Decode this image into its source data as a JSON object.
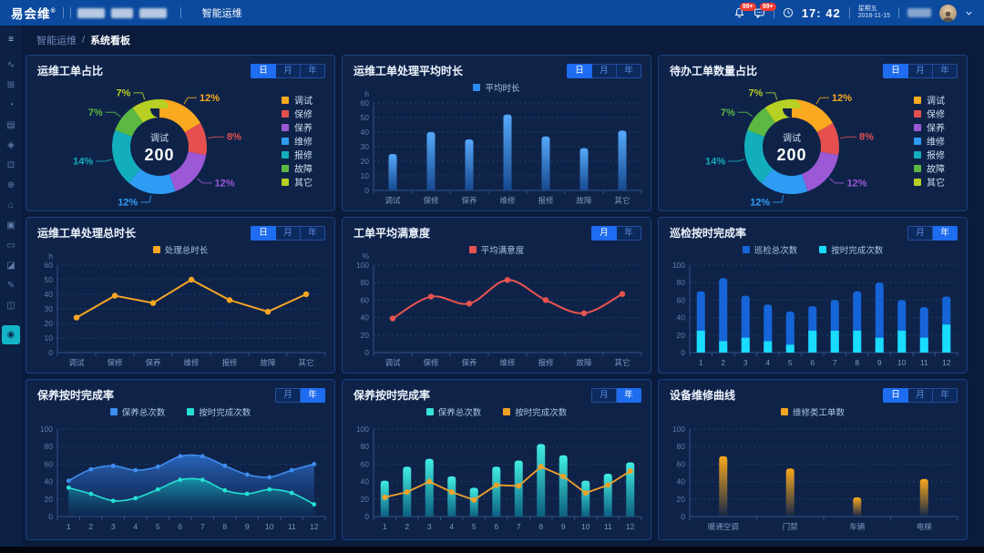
{
  "topbar": {
    "logo_text": "易会维",
    "logo_sup": "®",
    "nav_item": "智能运维",
    "bell_badge": "99+",
    "message_badge": "99+",
    "time": "17: 42",
    "weekday": "星期五",
    "date": "2018-11-15"
  },
  "breadcrumb": {
    "parent": "智能运维",
    "separator": "/",
    "current": "系统看板"
  },
  "sidebar": {
    "items": [
      {
        "name": "menu-collapse-icon",
        "glyph": "≡"
      },
      {
        "name": "pulse-monitor-icon",
        "glyph": "∿"
      },
      {
        "name": "modules-icon",
        "glyph": "⊞"
      },
      {
        "name": "alarm-icon",
        "glyph": "◔"
      },
      {
        "name": "table-icon",
        "glyph": "▤"
      },
      {
        "name": "shield-icon",
        "glyph": "◈"
      },
      {
        "name": "apps-icon",
        "glyph": "⊡"
      },
      {
        "name": "organization-icon",
        "glyph": "⊕"
      },
      {
        "name": "home-icon",
        "glyph": "⌂"
      },
      {
        "name": "briefcase-icon",
        "glyph": "▣"
      },
      {
        "name": "display-icon",
        "glyph": "▭"
      },
      {
        "name": "media-icon",
        "glyph": "◪"
      },
      {
        "name": "edit-icon",
        "glyph": "✎"
      },
      {
        "name": "chart-icon",
        "glyph": "◫"
      },
      {
        "name": "settings-icon",
        "glyph": "◉",
        "active": true
      }
    ]
  },
  "panels": [
    {
      "title": "运维工单占比",
      "toggles": [
        {
          "label": "日",
          "active": true
        },
        {
          "label": "月"
        },
        {
          "label": "年"
        }
      ]
    },
    {
      "title": "运维工单处理平均时长",
      "toggles": [
        {
          "label": "日",
          "active": true
        },
        {
          "label": "月"
        },
        {
          "label": "年"
        }
      ]
    },
    {
      "title": "待办工单数量占比",
      "toggles": [
        {
          "label": "日",
          "active": true
        },
        {
          "label": "月"
        },
        {
          "label": "年"
        }
      ]
    },
    {
      "title": "运维工单处理总时长",
      "toggles": [
        {
          "label": "日",
          "active": true
        },
        {
          "label": "月"
        },
        {
          "label": "年"
        }
      ]
    },
    {
      "title": "工单平均满意度",
      "toggles": [
        {
          "label": "月",
          "active": true
        },
        {
          "label": "年"
        }
      ]
    },
    {
      "title": "巡检按时完成率",
      "toggles": [
        {
          "label": "月"
        },
        {
          "label": "年",
          "active": true
        }
      ]
    },
    {
      "title": "保养按时完成率",
      "toggles": [
        {
          "label": "月"
        },
        {
          "label": "年",
          "active": true
        }
      ]
    },
    {
      "title": "保养按时完成率",
      "toggles": [
        {
          "label": "月"
        },
        {
          "label": "年",
          "active": true
        }
      ]
    },
    {
      "title": "设备维修曲线",
      "toggles": [
        {
          "label": "日",
          "active": true
        },
        {
          "label": "月"
        },
        {
          "label": "年"
        }
      ]
    }
  ],
  "chart_data": [
    {
      "type": "donut",
      "title": "运维工单占比",
      "center_label": "调试",
      "center_value": "200",
      "slices": [
        {
          "label": "调试",
          "pct": 12,
          "color": "#f9a91f"
        },
        {
          "label": "保修",
          "pct": 8,
          "color": "#e5504f"
        },
        {
          "label": "保养",
          "pct": 12,
          "color": "#9b59d6"
        },
        {
          "label": "维修",
          "pct": 12,
          "color": "#2e9cf4"
        },
        {
          "label": "报修",
          "pct": 14,
          "color": "#13aebc"
        },
        {
          "label": "故障",
          "pct": 7,
          "color": "#5cb843"
        },
        {
          "label": "其它",
          "pct": 7,
          "color": "#b7d023"
        }
      ]
    },
    {
      "type": "bar",
      "title": "运维工单处理平均时长",
      "unit": "h",
      "ymax": 60,
      "ystep": 10,
      "categories": [
        "调试",
        "保修",
        "保养",
        "维修",
        "报修",
        "故障",
        "其它"
      ],
      "series": [
        {
          "name": "平均时长",
          "color": "#2d8cf0",
          "grad": [
            "#55a9fa",
            "#17498f"
          ],
          "values": [
            25,
            40,
            35,
            52,
            37,
            29,
            41
          ]
        }
      ]
    },
    {
      "type": "donut",
      "title": "待办工单数量占比",
      "center_label": "调试",
      "center_value": "200",
      "slices": [
        {
          "label": "调试",
          "pct": 12,
          "color": "#f9a91f"
        },
        {
          "label": "保修",
          "pct": 8,
          "color": "#e5504f"
        },
        {
          "label": "保养",
          "pct": 12,
          "color": "#9b59d6"
        },
        {
          "label": "维修",
          "pct": 12,
          "color": "#2e9cf4"
        },
        {
          "label": "报修",
          "pct": 14,
          "color": "#13aebc"
        },
        {
          "label": "故障",
          "pct": 7,
          "color": "#5cb843"
        },
        {
          "label": "其它",
          "pct": 7,
          "color": "#b7d023"
        }
      ]
    },
    {
      "type": "line",
      "title": "运维工单处理总时长",
      "unit": "h",
      "ymax": 60,
      "ystep": 10,
      "categories": [
        "调试",
        "保修",
        "保养",
        "维修",
        "报修",
        "故障",
        "其它"
      ],
      "series": [
        {
          "name": "处理总时长",
          "color": "#f5a623",
          "values": [
            24,
            39,
            34,
            50,
            36,
            28,
            40
          ]
        }
      ]
    },
    {
      "type": "line",
      "smooth": true,
      "title": "工单平均满意度",
      "unit": "%",
      "ymax": 100,
      "ystep": 20,
      "categories": [
        "调试",
        "保修",
        "保养",
        "维修",
        "报修",
        "故障",
        "其它"
      ],
      "series": [
        {
          "name": "平均满意度",
          "color": "#e8544f",
          "values": [
            39,
            64,
            56,
            83,
            60,
            45,
            67
          ]
        }
      ]
    },
    {
      "type": "stacked_bar",
      "title": "巡检按时完成率",
      "ymax": 100,
      "ystep": 20,
      "categories": [
        "1",
        "2",
        "3",
        "4",
        "5",
        "6",
        "7",
        "8",
        "9",
        "10",
        "11",
        "12"
      ],
      "series": [
        {
          "name": "巡检总次数",
          "color": "#1565d8",
          "values": [
            70,
            85,
            65,
            55,
            47,
            53,
            60,
            70,
            80,
            60,
            52,
            64
          ]
        },
        {
          "name": "按时完成次数",
          "color": "#19dcff",
          "values": [
            25,
            13,
            17,
            13,
            9,
            25,
            25,
            25,
            17,
            25,
            17,
            32
          ]
        }
      ]
    },
    {
      "type": "area",
      "title": "保养按时完成率",
      "ymax": 100,
      "ystep": 20,
      "categories": [
        "1",
        "2",
        "3",
        "4",
        "5",
        "6",
        "7",
        "8",
        "9",
        "10",
        "11",
        "12"
      ],
      "series": [
        {
          "name": "保养总次数",
          "color": "#3d8df0",
          "fill": [
            "rgba(45,110,200,0.9)",
            "rgba(15,45,100,0.35)"
          ],
          "values": [
            41,
            54,
            58,
            53,
            57,
            69,
            69,
            58,
            48,
            45,
            53,
            60
          ]
        },
        {
          "name": "按时完成次数",
          "color": "#25e0d2",
          "fill": [
            "rgba(22,165,175,0.8)",
            "rgba(10,60,90,0.15)"
          ],
          "values": [
            33,
            26,
            18,
            21,
            31,
            42,
            42,
            30,
            26,
            31,
            27,
            14
          ]
        }
      ]
    },
    {
      "type": "bar_line",
      "title": "保养按时完成率",
      "ymax": 100,
      "ystep": 20,
      "categories": [
        "1",
        "2",
        "3",
        "4",
        "5",
        "6",
        "7",
        "8",
        "9",
        "10",
        "11",
        "12"
      ],
      "series": [
        {
          "name": "保养总次数",
          "kind": "bar",
          "color": "#35e3da",
          "grad": [
            "#41eee2",
            "#0d5f80"
          ],
          "values": [
            41,
            57,
            66,
            46,
            33,
            57,
            64,
            83,
            70,
            41,
            49,
            62
          ]
        },
        {
          "name": "按时完成次数",
          "kind": "line",
          "color": "#f2a127",
          "values": [
            22,
            28,
            40,
            28,
            19,
            36,
            35,
            57,
            46,
            27,
            36,
            52
          ]
        }
      ]
    },
    {
      "type": "bar",
      "title": "设备维修曲线",
      "ymax": 100,
      "ystep": 20,
      "categories": [
        "暖通空调",
        "门禁",
        "车辆",
        "电梯"
      ],
      "series": [
        {
          "name": "维修类工单数",
          "color": "#f5a623",
          "grad": [
            "#f9a81c",
            "rgba(249,168,28,0.03)"
          ],
          "values": [
            69,
            55,
            22,
            43
          ]
        }
      ]
    }
  ],
  "colors": {
    "topbar_bg": "#0b4a9f",
    "page_bg": "#0a1b3c",
    "panel_bg": "#0f2349",
    "panel_border": "#1c4080",
    "accent": "#1e6cf0",
    "active_icon_bg": "#14b4c8",
    "badge": "#f5392f"
  }
}
